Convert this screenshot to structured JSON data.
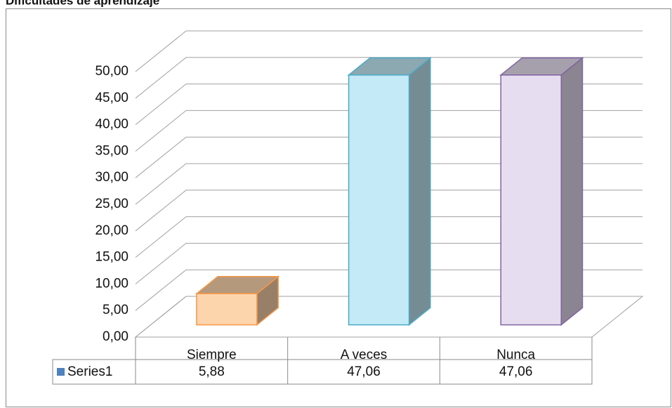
{
  "chart_data": {
    "type": "bar3d",
    "title": "Dificultades de aprendizaje",
    "categories": [
      "Siempre",
      "A veces",
      "Nunca"
    ],
    "series": [
      {
        "name": "Series1",
        "color": "#4f81bd",
        "values": [
          5.88,
          47.06,
          47.06
        ],
        "value_labels": [
          "5,88",
          "47,06",
          "47,06"
        ]
      }
    ],
    "colors": [
      "#fcd5ac",
      "#c3eaf6",
      "#e6def0"
    ],
    "edge_colors": [
      "#f79646",
      "#4bacc6",
      "#8064a2"
    ],
    "ylim": [
      0,
      50
    ],
    "yticks": [
      {
        "value": 0,
        "label": "0,00"
      },
      {
        "value": 5,
        "label": "5,00"
      },
      {
        "value": 10,
        "label": "10,00"
      },
      {
        "value": 15,
        "label": "15,00"
      },
      {
        "value": 20,
        "label": "20,00"
      },
      {
        "value": 25,
        "label": "25,00"
      },
      {
        "value": 30,
        "label": "30,00"
      },
      {
        "value": 35,
        "label": "35,00"
      },
      {
        "value": 40,
        "label": "40,00"
      },
      {
        "value": 45,
        "label": "45,00"
      },
      {
        "value": 50,
        "label": "50,00"
      }
    ],
    "grid": true
  }
}
